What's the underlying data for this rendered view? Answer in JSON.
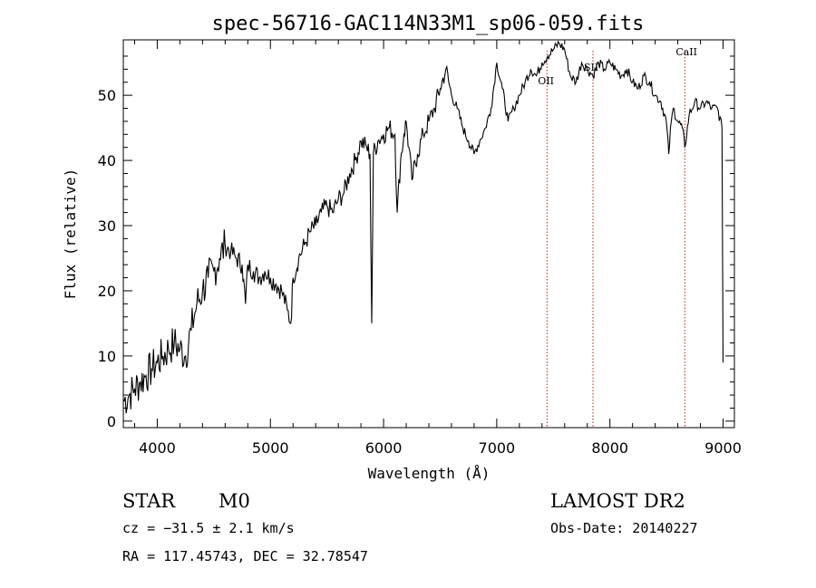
{
  "chart_data": {
    "type": "line",
    "title": "spec-56716-GAC114N33M1_sp06-059.fits",
    "xlabel": "Wavelength (Å)",
    "ylabel": "Flux (relative)",
    "xlim": [
      3700,
      9100
    ],
    "ylim": [
      -1,
      58.5
    ],
    "xticks": [
      4000,
      5000,
      6000,
      7000,
      8000,
      9000
    ],
    "xtick_labels": [
      "4000",
      "5000",
      "6000",
      "7000",
      "8000",
      "9000"
    ],
    "yticks": [
      0,
      10,
      20,
      30,
      40,
      50
    ],
    "ytick_labels": [
      "0",
      "10",
      "20",
      "30",
      "40",
      "50"
    ],
    "grid": false,
    "series": [
      {
        "x": [
          3700,
          3750,
          3800,
          3850,
          3900,
          3950,
          4000,
          4050,
          4100,
          4150,
          4200,
          4250,
          4300,
          4350,
          4400,
          4450,
          4500,
          4550,
          4600,
          4650,
          4700,
          4750,
          4780,
          4800,
          4850,
          4900,
          4950,
          5000,
          5050,
          5100,
          5150,
          5180,
          5200,
          5250,
          5300,
          5350,
          5400,
          5450,
          5500,
          5550,
          5600,
          5650,
          5700,
          5750,
          5800,
          5850,
          5880,
          5895,
          5910,
          5950,
          6000,
          6050,
          6100,
          6120,
          6150,
          6180,
          6200,
          6250,
          6300,
          6350,
          6400,
          6450,
          6500,
          6550,
          6600,
          6650,
          6700,
          6750,
          6800,
          6850,
          6900,
          6950,
          7000,
          7050,
          7100,
          7150,
          7200,
          7250,
          7300,
          7350,
          7400,
          7450,
          7500,
          7550,
          7600,
          7650,
          7700,
          7750,
          7800,
          7850,
          7900,
          7950,
          8000,
          8050,
          8100,
          8150,
          8200,
          8250,
          8300,
          8350,
          8400,
          8450,
          8498,
          8520,
          8542,
          8560,
          8600,
          8640,
          8662,
          8700,
          8750,
          8800,
          8850,
          8900,
          8950,
          8990,
          9000
        ],
        "y": [
          3,
          4,
          5,
          6,
          7,
          8,
          9,
          10,
          11,
          12,
          11,
          10,
          14,
          18,
          20,
          22,
          23,
          25,
          27,
          26,
          25,
          24,
          18,
          24,
          23,
          22,
          23,
          22,
          21,
          20,
          17,
          15,
          22,
          25,
          27,
          29,
          30,
          32,
          33,
          32,
          34,
          35,
          38,
          40,
          43,
          42,
          41,
          15,
          41,
          43,
          44,
          45,
          44,
          32,
          40,
          44,
          46,
          37,
          41,
          44,
          46,
          48,
          51,
          54,
          50,
          48,
          45,
          43,
          41,
          43,
          45,
          48,
          55,
          51,
          46,
          48,
          50,
          52,
          54,
          53,
          55,
          56,
          57,
          58,
          57,
          53,
          52,
          55,
          54,
          53,
          55,
          54,
          55,
          54,
          53,
          54,
          52,
          51,
          53,
          52,
          50,
          49,
          46,
          41,
          46,
          48,
          46,
          45,
          42,
          47,
          49,
          48,
          49,
          48,
          48,
          45,
          9
        ]
      }
    ],
    "annotations": [
      {
        "text": "OII",
        "x": 7444
      },
      {
        "text": "SII",
        "x": 7850
      },
      {
        "text": "CaII",
        "x": 8662
      }
    ],
    "reference_lines_color": "#b22222",
    "line_color": "#000000"
  },
  "info": {
    "object_type": "STAR",
    "subclass": "M0",
    "survey": "LAMOST DR2",
    "velocity": "cz = −31.5 ± 2.1 km/s",
    "obs_date": "Obs-Date: 20140227",
    "coords": "RA = 117.45743, DEC =  32.78547"
  }
}
